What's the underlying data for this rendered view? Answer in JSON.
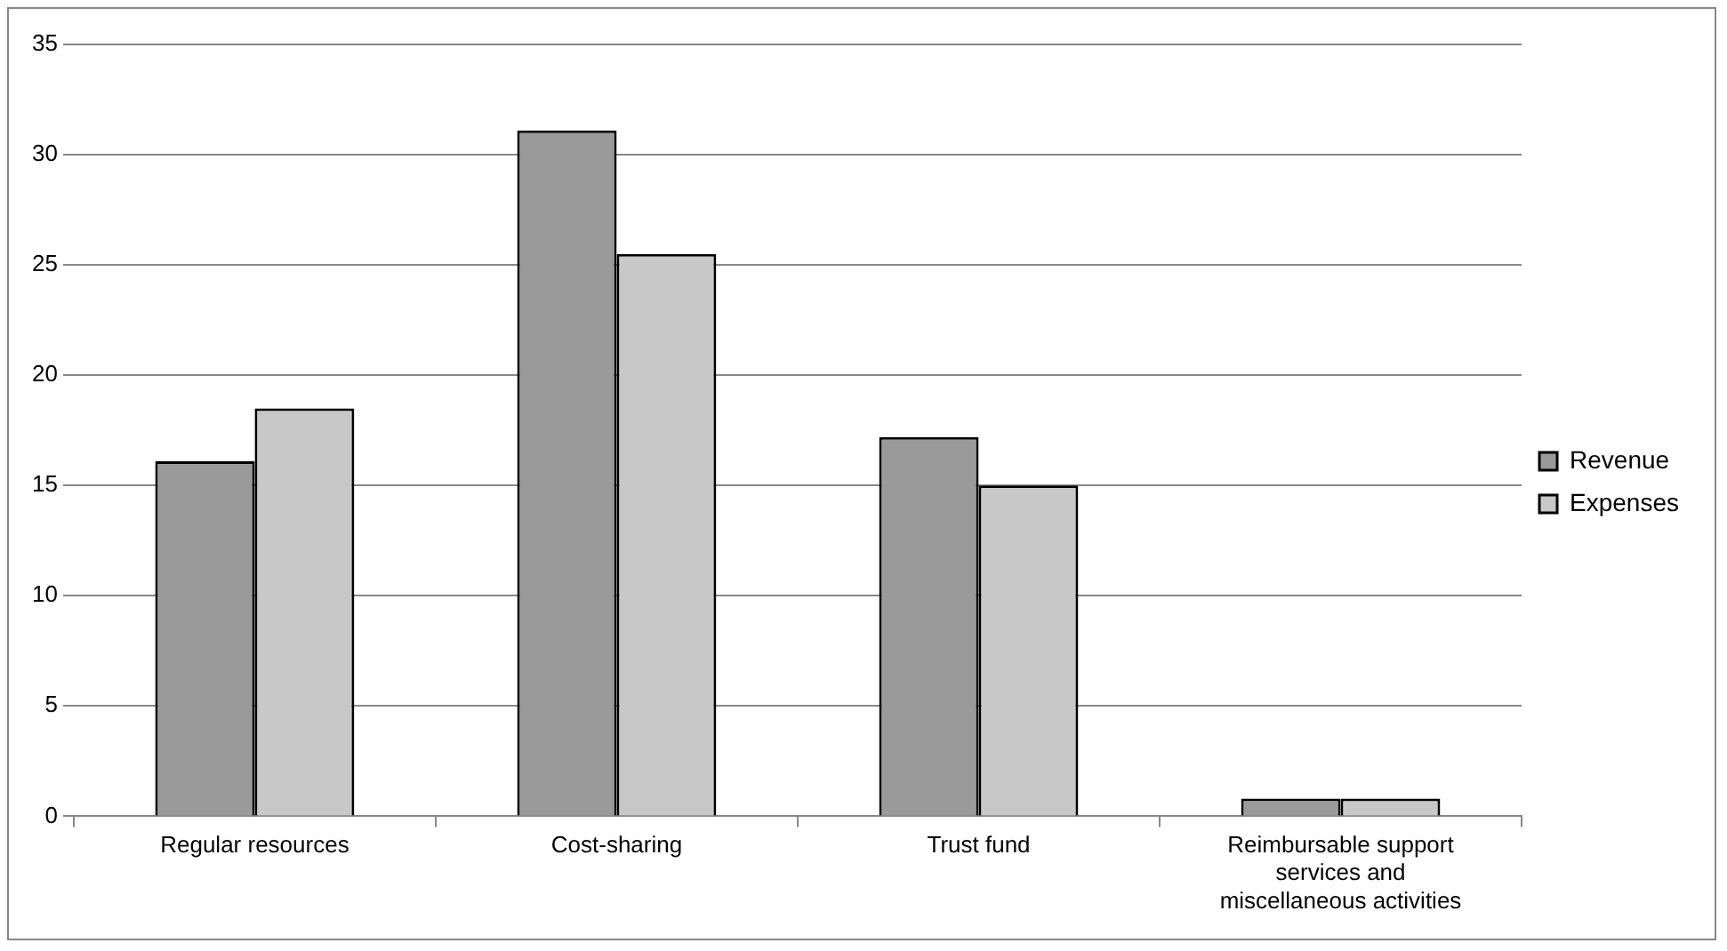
{
  "chart_data": {
    "type": "bar",
    "categories": [
      "Regular resources",
      "Cost-sharing",
      "Trust fund",
      "Reimbursable support services and miscellaneous activities"
    ],
    "series": [
      {
        "name": "Revenue",
        "color": "#9a9a9a",
        "values": [
          16.1,
          31.1,
          17.2,
          0.8
        ]
      },
      {
        "name": "Expenses",
        "color": "#c8c8c8",
        "values": [
          18.5,
          25.5,
          15.0,
          0.8
        ]
      }
    ],
    "ylim": [
      0,
      35
    ],
    "yticks": [
      0,
      5,
      10,
      15,
      20,
      25,
      30,
      35
    ],
    "grid": "y",
    "legend": "right"
  }
}
